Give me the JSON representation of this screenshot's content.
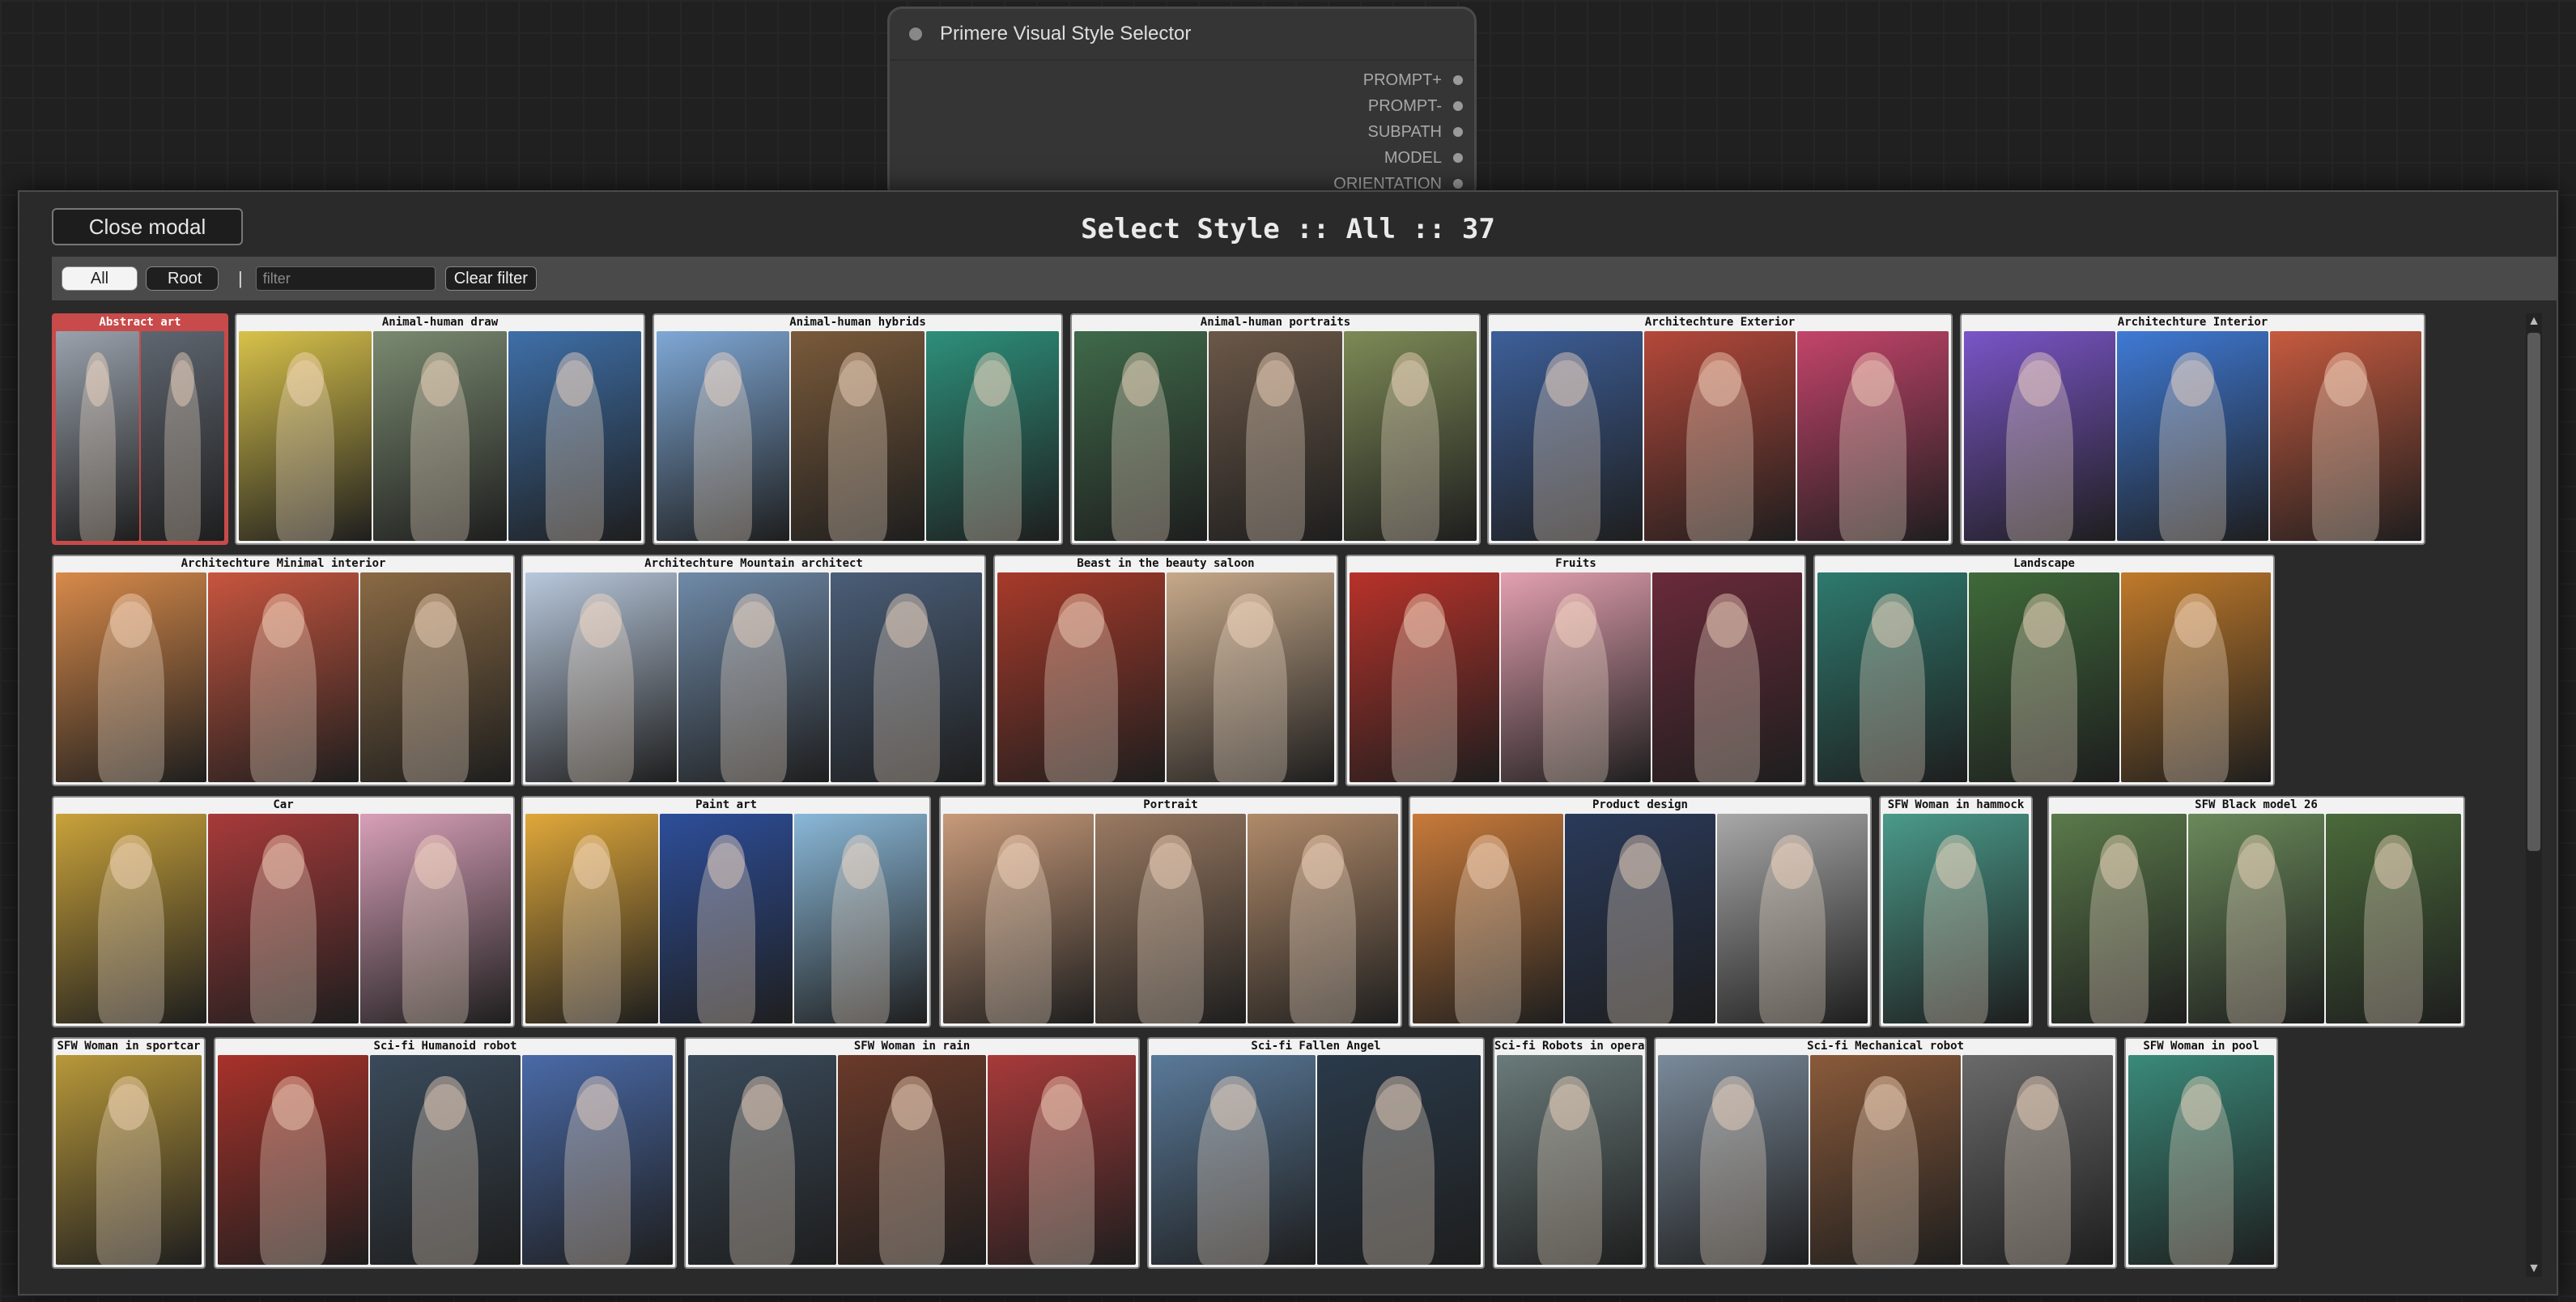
{
  "node": {
    "title": "Primere Visual Style Selector",
    "outputs": [
      "PROMPT+",
      "PROMPT-",
      "SUBPATH",
      "MODEL",
      "ORIENTATION"
    ]
  },
  "modal": {
    "close_label": "Close modal",
    "title": "Select Style :: All :: 37",
    "filters": {
      "all_label": "All",
      "root_label": "Root",
      "separator": "|",
      "filter_placeholder": "filter",
      "clear_label": "Clear filter"
    }
  },
  "styles": [
    {
      "label": "Abstract art",
      "selected": true,
      "colors": [
        "#9aa2ad",
        "#5f6670"
      ]
    },
    {
      "label": "Animal-human draw",
      "colors": [
        "#d8c24a",
        "#7a8a70",
        "#3e6fa8"
      ]
    },
    {
      "label": "Animal-human hybrids",
      "colors": [
        "#7fa8d6",
        "#7a5a3a",
        "#2d8f7a"
      ]
    },
    {
      "label": "Animal-human portraits",
      "colors": [
        "#3f6a4a",
        "#6b5848",
        "#7d8a56"
      ]
    },
    {
      "label": "Architechture Exterior",
      "colors": [
        "#3d5f9a",
        "#b5483a",
        "#c4446b"
      ]
    },
    {
      "label": "Architechture Interior",
      "colors": [
        "#7a55c8",
        "#3f7ad6",
        "#c65a3f"
      ]
    },
    {
      "label": "Architechture Minimal interior",
      "colors": [
        "#d88a4a",
        "#c8553f",
        "#8a6a44"
      ]
    },
    {
      "label": "Architechture Mountain architect",
      "colors": [
        "#b8c8dc",
        "#6f8aa8",
        "#4a5e78"
      ]
    },
    {
      "label": "Beast in the beauty saloon",
      "colors": [
        "#a83a2a",
        "#c7a98a"
      ]
    },
    {
      "label": "Fruits",
      "colors": [
        "#b8322a",
        "#e3a0b0",
        "#6a2a3a"
      ]
    },
    {
      "label": "Landscape",
      "colors": [
        "#2e7a6e",
        "#3f6a3a",
        "#c07a2a"
      ]
    },
    {
      "label": "Car",
      "colors": [
        "#c9a23a",
        "#a83a3a",
        "#d8a0b8"
      ]
    },
    {
      "label": "Paint art",
      "colors": [
        "#e0a83a",
        "#2d4e9a",
        "#8ab8d8"
      ]
    },
    {
      "label": "Portrait",
      "colors": [
        "#c89a7a",
        "#9a7a62",
        "#b08a6a"
      ]
    },
    {
      "label": "Product design",
      "colors": [
        "#c87a3a",
        "#2a3a5a",
        "#a8a8a8"
      ]
    },
    {
      "label": "SFW Woman in hammock",
      "colors": [
        "#4a9a8a"
      ]
    },
    {
      "label": "SFW Black model 26",
      "colors": [
        "#5a7a4a",
        "#6a8a5a",
        "#4a6a3a"
      ]
    },
    {
      "label": "SFW Woman in sportcar",
      "colors": [
        "#b8983a"
      ]
    },
    {
      "label": "Sci-fi Humanoid robot",
      "colors": [
        "#a8322a",
        "#3a4a5a",
        "#4a6aa8"
      ]
    },
    {
      "label": "SFW Woman in rain",
      "colors": [
        "#3a4a5a",
        "#6a3a2a",
        "#a83a3a"
      ]
    },
    {
      "label": "Sci-fi Fallen Angel",
      "colors": [
        "#5a7a9a",
        "#2a3a4a"
      ]
    },
    {
      "label": "Sci-fi Robots in operat",
      "colors": [
        "#6a7a7a"
      ]
    },
    {
      "label": "Sci-fi Mechanical robot",
      "colors": [
        "#7a8a9a",
        "#8a5a3a",
        "#6a6a6a"
      ]
    },
    {
      "label": "SFW Woman in pool",
      "colors": [
        "#3a8a7a"
      ]
    }
  ]
}
